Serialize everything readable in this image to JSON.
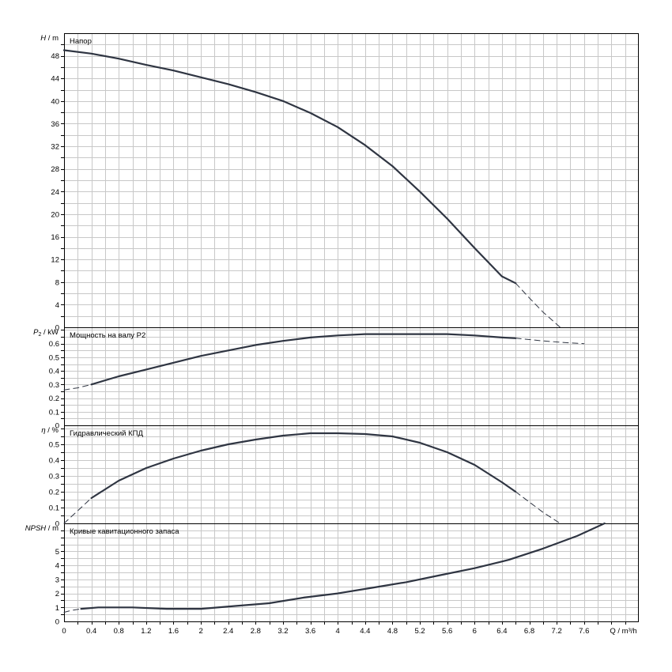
{
  "chart_data": [
    {
      "type": "line",
      "title": "Напор",
      "ylabel": "H / m",
      "ylabel_var": "H",
      "ylabel_unit": "m",
      "ylim": [
        0,
        52
      ],
      "yticks": [
        "0",
        "4",
        "8",
        "12",
        "16",
        "20",
        "24",
        "28",
        "32",
        "36",
        "40",
        "44",
        "48"
      ],
      "grid": true,
      "color": "#2f3542",
      "series": [
        {
          "style": "solid",
          "x": [
            0,
            0.4,
            0.8,
            1.2,
            1.6,
            2.0,
            2.4,
            2.8,
            3.2,
            3.6,
            4.0,
            4.4,
            4.8,
            5.2,
            5.6,
            6.0,
            6.4,
            6.6
          ],
          "y": [
            49.0,
            48.4,
            47.5,
            46.4,
            45.4,
            44.2,
            43.0,
            41.6,
            40.0,
            37.9,
            35.4,
            32.2,
            28.5,
            24.0,
            19.2,
            14.0,
            9.0,
            7.8
          ]
        },
        {
          "style": "dashed",
          "x": [
            6.6,
            6.8,
            7.0,
            7.25
          ],
          "y": [
            7.8,
            5.2,
            2.7,
            0
          ]
        }
      ]
    },
    {
      "type": "line",
      "title": "Мощность на валу P2",
      "ylabel": "P₂ / kW",
      "ylabel_var": "P",
      "ylabel_sub": "2",
      "ylabel_unit": "kW",
      "ylim": [
        0,
        0.72
      ],
      "yticks": [
        "0",
        "0.1",
        "0.2",
        "0.3",
        "0.4",
        "0.5",
        "0.6"
      ],
      "grid": true,
      "color": "#2f3542",
      "series": [
        {
          "style": "dashed",
          "x": [
            0,
            0.2,
            0.4
          ],
          "y": [
            0.26,
            0.275,
            0.3
          ]
        },
        {
          "style": "solid",
          "x": [
            0.4,
            0.8,
            1.2,
            1.6,
            2.0,
            2.4,
            2.8,
            3.2,
            3.6,
            4.0,
            4.4,
            4.8,
            5.2,
            5.6,
            6.0,
            6.4,
            6.6
          ],
          "y": [
            0.3,
            0.36,
            0.41,
            0.46,
            0.51,
            0.55,
            0.59,
            0.62,
            0.645,
            0.66,
            0.67,
            0.67,
            0.67,
            0.67,
            0.66,
            0.645,
            0.64
          ]
        },
        {
          "style": "dashed",
          "x": [
            6.6,
            7.0,
            7.4,
            7.6
          ],
          "y": [
            0.64,
            0.62,
            0.605,
            0.6
          ]
        }
      ]
    },
    {
      "type": "line",
      "title": "Гидравлический КПД",
      "ylabel": "η / %",
      "ylabel_var": "η",
      "ylabel_unit": "%",
      "ylim": [
        0,
        0.62
      ],
      "yticks": [
        "0",
        "0.1",
        "0.2",
        "0.3",
        "0.4",
        "0.5"
      ],
      "grid": true,
      "color": "#2f3542",
      "series": [
        {
          "style": "dashed",
          "x": [
            0,
            0.2,
            0.4
          ],
          "y": [
            0,
            0.08,
            0.16
          ]
        },
        {
          "style": "solid",
          "x": [
            0.4,
            0.8,
            1.2,
            1.6,
            2.0,
            2.4,
            2.8,
            3.2,
            3.6,
            4.0,
            4.4,
            4.8,
            5.2,
            5.6,
            6.0,
            6.4,
            6.6
          ],
          "y": [
            0.16,
            0.27,
            0.35,
            0.41,
            0.46,
            0.5,
            0.53,
            0.555,
            0.57,
            0.57,
            0.565,
            0.55,
            0.51,
            0.45,
            0.37,
            0.26,
            0.2
          ]
        },
        {
          "style": "dashed",
          "x": [
            6.6,
            6.8,
            7.0,
            7.25
          ],
          "y": [
            0.2,
            0.135,
            0.07,
            0
          ]
        }
      ]
    },
    {
      "type": "line",
      "title": "Кривые кавитационного запаса",
      "ylabel": "NPSH / m",
      "ylabel_var": "NPSH",
      "ylabel_unit": "m",
      "ylim": [
        0,
        7
      ],
      "yticks": [
        "0",
        "1",
        "2",
        "3",
        "4",
        "5"
      ],
      "grid": true,
      "color": "#2f3542",
      "series": [
        {
          "style": "dashed",
          "x": [
            0,
            0.1,
            0.25
          ],
          "y": [
            0.65,
            0.78,
            0.9
          ]
        },
        {
          "style": "solid",
          "x": [
            0.25,
            0.5,
            1.0,
            1.5,
            2.0,
            2.5,
            3.0,
            3.5,
            4.0,
            4.5,
            5.0,
            5.5,
            6.0,
            6.5,
            7.0,
            7.5,
            7.9
          ],
          "y": [
            0.9,
            1.0,
            1.0,
            0.9,
            0.9,
            1.1,
            1.3,
            1.7,
            2.0,
            2.4,
            2.8,
            3.3,
            3.8,
            4.4,
            5.2,
            6.1,
            7.0
          ]
        }
      ]
    }
  ],
  "x_axis": {
    "label": "Q / m³/h",
    "xlim": [
      0,
      8.4
    ],
    "ticks": [
      "0",
      "0.4",
      "0.8",
      "1.2",
      "1.6",
      "2",
      "2.4",
      "2.8",
      "3.2",
      "3.6",
      "4",
      "4.4",
      "4.8",
      "5.2",
      "5.6",
      "6",
      "6.4",
      "6.8",
      "7.2",
      "7.6"
    ]
  }
}
